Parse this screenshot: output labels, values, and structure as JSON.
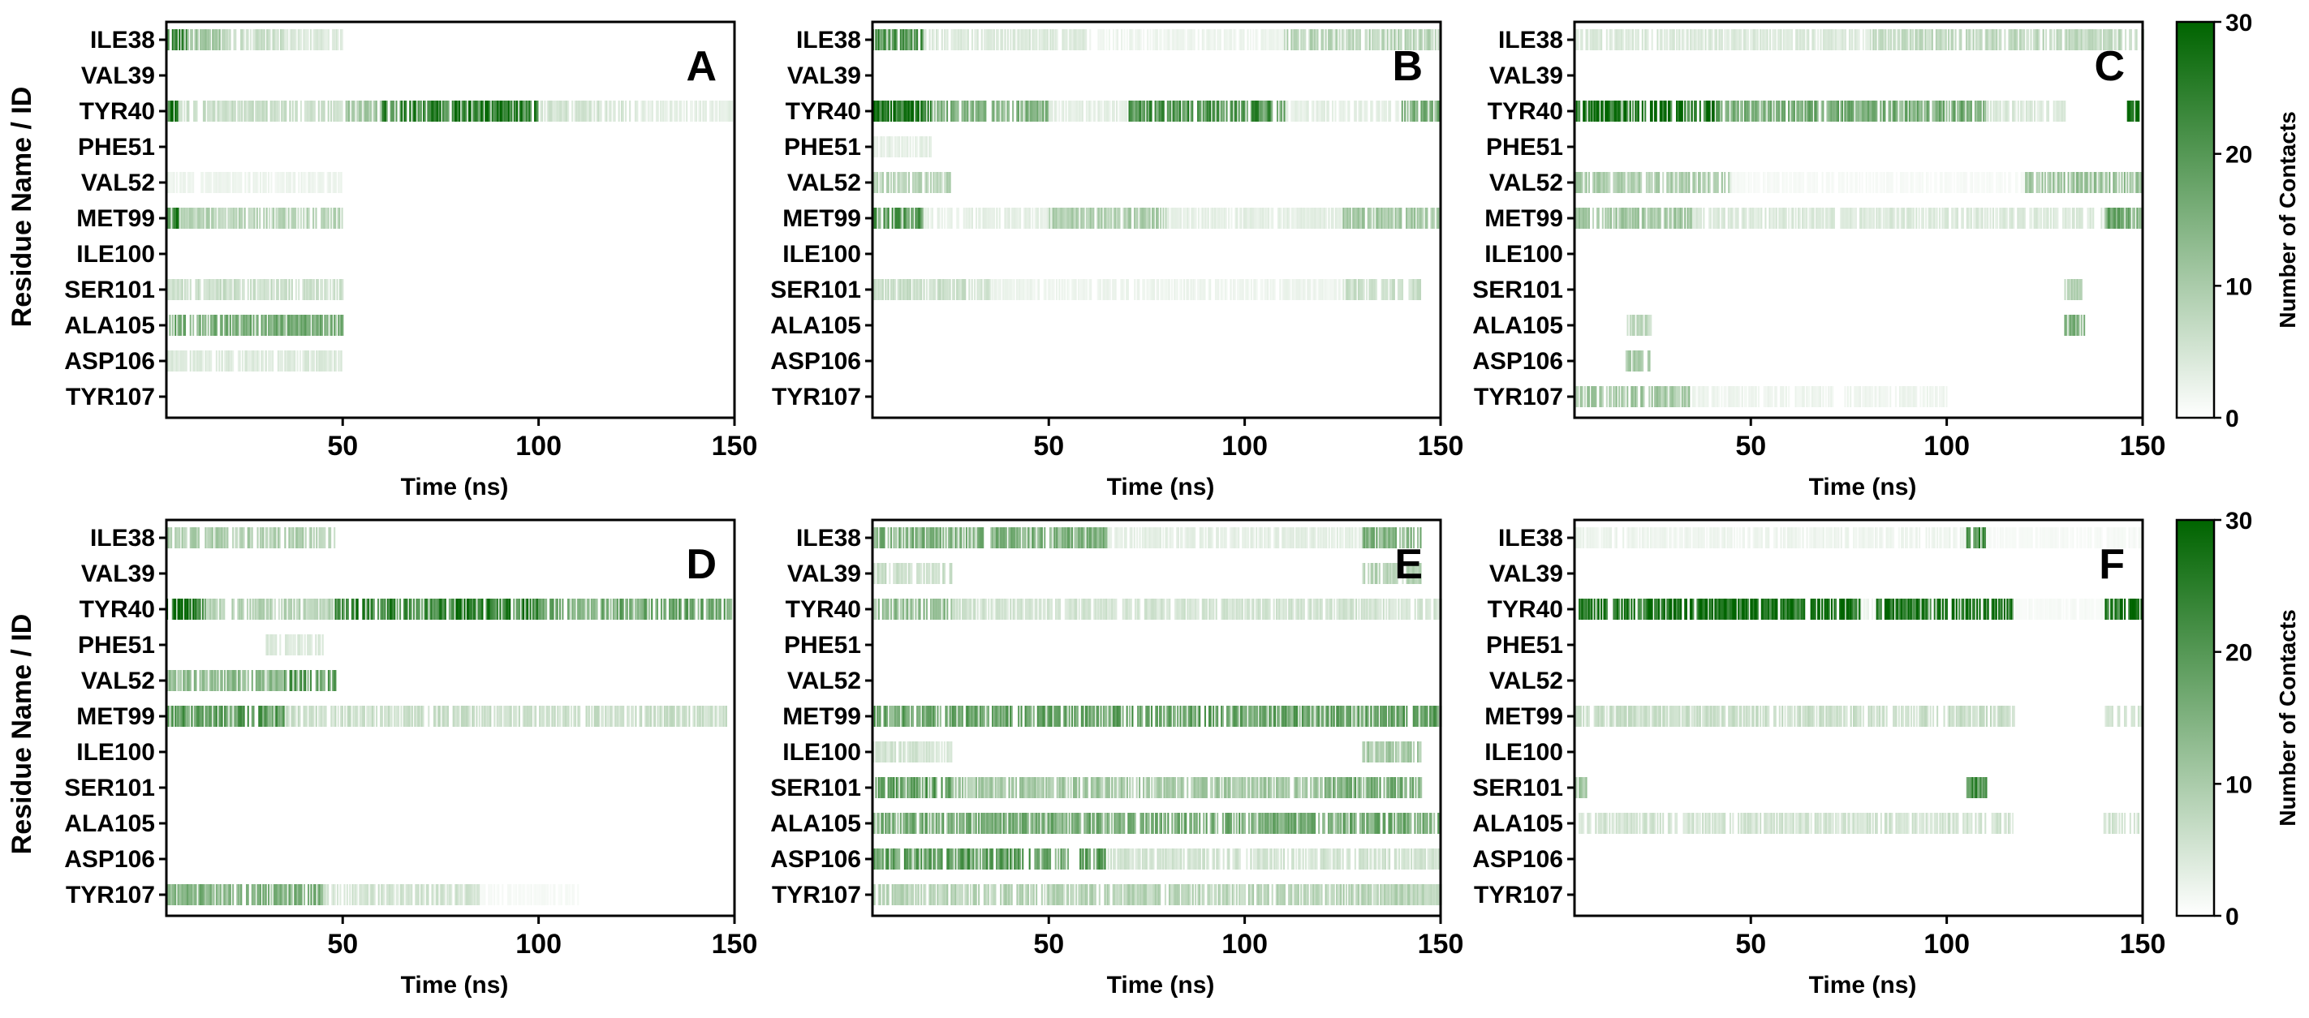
{
  "figure": {
    "y_axis_title": "Residue Name / ID",
    "colorbar": {
      "title": "Number of Contacts",
      "ticks": [
        0,
        10,
        20,
        30
      ],
      "min": 0,
      "max": 30,
      "color_low": "#ffffff",
      "color_high": "#006400"
    }
  },
  "chart_data": [
    {
      "type": "heatmap",
      "panel": "A",
      "xlabel": "Time (ns)",
      "xlim": [
        5,
        150
      ],
      "xticks": [
        50,
        100,
        150
      ],
      "residues": [
        "ILE38",
        "VAL39",
        "TYR40",
        "PHE51",
        "VAL52",
        "MET99",
        "ILE100",
        "SER101",
        "ALA105",
        "ASP106",
        "TYR107"
      ],
      "bands": [
        {
          "residue": "ILE38",
          "segments": [
            [
              5,
              10,
              22
            ],
            [
              10,
              20,
              10
            ],
            [
              20,
              35,
              6
            ],
            [
              35,
              50,
              4
            ]
          ]
        },
        {
          "residue": "TYR40",
          "segments": [
            [
              5,
              8,
              26
            ],
            [
              8,
              50,
              6
            ],
            [
              50,
              60,
              10
            ],
            [
              60,
              100,
              24
            ],
            [
              100,
              125,
              5
            ],
            [
              125,
              150,
              3
            ]
          ]
        },
        {
          "residue": "VAL52",
          "segments": [
            [
              5,
              50,
              2
            ]
          ]
        },
        {
          "residue": "MET99",
          "segments": [
            [
              5,
              8,
              22
            ],
            [
              8,
              50,
              8
            ]
          ]
        },
        {
          "residue": "SER101",
          "segments": [
            [
              5,
              50,
              6
            ]
          ]
        },
        {
          "residue": "ALA105",
          "segments": [
            [
              5,
              50,
              15
            ]
          ]
        },
        {
          "residue": "ASP106",
          "segments": [
            [
              5,
              50,
              4
            ]
          ]
        }
      ]
    },
    {
      "type": "heatmap",
      "panel": "B",
      "xlabel": "Time (ns)",
      "xlim": [
        5,
        150
      ],
      "xticks": [
        50,
        100,
        150
      ],
      "residues": [
        "ILE38",
        "VAL39",
        "TYR40",
        "PHE51",
        "VAL52",
        "MET99",
        "ILE100",
        "SER101",
        "ALA105",
        "ASP106",
        "TYR107"
      ],
      "bands": [
        {
          "residue": "ILE38",
          "segments": [
            [
              5,
              18,
              20
            ],
            [
              18,
              60,
              4
            ],
            [
              60,
              110,
              2
            ],
            [
              110,
              150,
              8
            ]
          ]
        },
        {
          "residue": "TYR40",
          "segments": [
            [
              5,
              20,
              26
            ],
            [
              20,
              50,
              14
            ],
            [
              50,
              70,
              3
            ],
            [
              70,
              110,
              20
            ],
            [
              110,
              140,
              3
            ],
            [
              140,
              150,
              15
            ]
          ]
        },
        {
          "residue": "PHE51",
          "segments": [
            [
              5,
              20,
              3
            ]
          ]
        },
        {
          "residue": "VAL52",
          "segments": [
            [
              5,
              25,
              8
            ]
          ]
        },
        {
          "residue": "MET99",
          "segments": [
            [
              5,
              18,
              18
            ],
            [
              18,
              50,
              3
            ],
            [
              50,
              80,
              9
            ],
            [
              80,
              125,
              3
            ],
            [
              125,
              150,
              10
            ]
          ]
        },
        {
          "residue": "SER101",
          "segments": [
            [
              5,
              35,
              6
            ],
            [
              35,
              125,
              2
            ],
            [
              125,
              145,
              6
            ]
          ]
        }
      ]
    },
    {
      "type": "heatmap",
      "panel": "C",
      "xlabel": "Time (ns)",
      "xlim": [
        5,
        150
      ],
      "xticks": [
        50,
        100,
        150
      ],
      "residues": [
        "ILE38",
        "VAL39",
        "TYR40",
        "PHE51",
        "VAL52",
        "MET99",
        "ILE100",
        "SER101",
        "ALA105",
        "ASP106",
        "TYR107"
      ],
      "bands": [
        {
          "residue": "ILE38",
          "segments": [
            [
              5,
              80,
              4
            ],
            [
              80,
              150,
              7
            ]
          ]
        },
        {
          "residue": "TYR40",
          "segments": [
            [
              5,
              42,
              27
            ],
            [
              42,
              110,
              15
            ],
            [
              110,
              130,
              4
            ],
            [
              130,
              146,
              0
            ],
            [
              146,
              150,
              28
            ]
          ]
        },
        {
          "residue": "VAL52",
          "segments": [
            [
              5,
              45,
              9
            ],
            [
              45,
              120,
              1
            ],
            [
              120,
              150,
              11
            ]
          ]
        },
        {
          "residue": "MET99",
          "segments": [
            [
              5,
              35,
              10
            ],
            [
              35,
              140,
              4
            ],
            [
              140,
              150,
              16
            ]
          ]
        },
        {
          "residue": "SER101",
          "segments": [
            [
              130,
              135,
              8
            ]
          ]
        },
        {
          "residue": "ALA105",
          "segments": [
            [
              18,
              25,
              7
            ],
            [
              130,
              135,
              14
            ]
          ]
        },
        {
          "residue": "ASP106",
          "segments": [
            [
              18,
              24,
              10
            ]
          ]
        },
        {
          "residue": "TYR107",
          "segments": [
            [
              5,
              35,
              10
            ],
            [
              35,
              100,
              2
            ]
          ]
        }
      ]
    },
    {
      "type": "heatmap",
      "panel": "D",
      "xlabel": "Time (ns)",
      "xlim": [
        5,
        150
      ],
      "xticks": [
        50,
        100,
        150
      ],
      "residues": [
        "ILE38",
        "VAL39",
        "TYR40",
        "PHE51",
        "VAL52",
        "MET99",
        "ILE100",
        "SER101",
        "ALA105",
        "ASP106",
        "TYR107"
      ],
      "bands": [
        {
          "residue": "ILE38",
          "segments": [
            [
              5,
              48,
              9
            ]
          ]
        },
        {
          "residue": "TYR40",
          "segments": [
            [
              5,
              15,
              27
            ],
            [
              15,
              48,
              8
            ],
            [
              48,
              100,
              23
            ],
            [
              100,
              150,
              16
            ]
          ]
        },
        {
          "residue": "PHE51",
          "segments": [
            [
              30,
              45,
              4
            ]
          ]
        },
        {
          "residue": "VAL52",
          "segments": [
            [
              5,
              35,
              12
            ],
            [
              35,
              48,
              18
            ]
          ]
        },
        {
          "residue": "MET99",
          "segments": [
            [
              5,
              35,
              18
            ],
            [
              35,
              148,
              6
            ]
          ]
        },
        {
          "residue": "TYR107",
          "segments": [
            [
              5,
              45,
              14
            ],
            [
              45,
              85,
              5
            ],
            [
              85,
              110,
              1
            ]
          ]
        }
      ]
    },
    {
      "type": "heatmap",
      "panel": "E",
      "xlabel": "Time (ns)",
      "xlim": [
        5,
        150
      ],
      "xticks": [
        50,
        100,
        150
      ],
      "residues": [
        "ILE38",
        "VAL39",
        "TYR40",
        "PHE51",
        "VAL52",
        "MET99",
        "ILE100",
        "SER101",
        "ALA105",
        "ASP106",
        "TYR107"
      ],
      "bands": [
        {
          "residue": "ILE38",
          "segments": [
            [
              5,
              65,
              14
            ],
            [
              65,
              130,
              3
            ],
            [
              130,
              145,
              14
            ]
          ]
        },
        {
          "residue": "VAL39",
          "segments": [
            [
              5,
              25,
              6
            ],
            [
              130,
              145,
              8
            ]
          ]
        },
        {
          "residue": "TYR40",
          "segments": [
            [
              5,
              25,
              12
            ],
            [
              25,
              150,
              5
            ]
          ]
        },
        {
          "residue": "MET99",
          "segments": [
            [
              5,
              150,
              17
            ]
          ]
        },
        {
          "residue": "ILE100",
          "segments": [
            [
              5,
              25,
              5
            ],
            [
              130,
              145,
              10
            ]
          ]
        },
        {
          "residue": "SER101",
          "segments": [
            [
              5,
              25,
              18
            ],
            [
              25,
              120,
              10
            ],
            [
              120,
              145,
              15
            ]
          ]
        },
        {
          "residue": "ALA105",
          "segments": [
            [
              5,
              150,
              15
            ]
          ]
        },
        {
          "residue": "ASP106",
          "segments": [
            [
              5,
              65,
              18
            ],
            [
              65,
              150,
              5
            ]
          ]
        },
        {
          "residue": "TYR107",
          "segments": [
            [
              5,
              150,
              8
            ]
          ]
        }
      ]
    },
    {
      "type": "heatmap",
      "panel": "F",
      "xlabel": "Time (ns)",
      "xlim": [
        5,
        150
      ],
      "xticks": [
        50,
        100,
        150
      ],
      "residues": [
        "ILE38",
        "VAL39",
        "TYR40",
        "PHE51",
        "VAL52",
        "MET99",
        "ILE100",
        "SER101",
        "ALA105",
        "ASP106",
        "TYR107"
      ],
      "bands": [
        {
          "residue": "ILE38",
          "segments": [
            [
              5,
              105,
              2
            ],
            [
              105,
              110,
              20
            ],
            [
              110,
              150,
              1
            ]
          ]
        },
        {
          "residue": "TYR40",
          "segments": [
            [
              5,
              78,
              28
            ],
            [
              78,
              82,
              2
            ],
            [
              82,
              117,
              26
            ],
            [
              117,
              140,
              1
            ],
            [
              140,
              150,
              27
            ]
          ]
        },
        {
          "residue": "MET99",
          "segments": [
            [
              5,
              117,
              6
            ],
            [
              140,
              150,
              5
            ]
          ]
        },
        {
          "residue": "SER101",
          "segments": [
            [
              5,
              8,
              10
            ],
            [
              105,
              110,
              20
            ]
          ]
        },
        {
          "residue": "ALA105",
          "segments": [
            [
              5,
              117,
              5
            ],
            [
              140,
              150,
              5
            ]
          ]
        }
      ]
    }
  ]
}
